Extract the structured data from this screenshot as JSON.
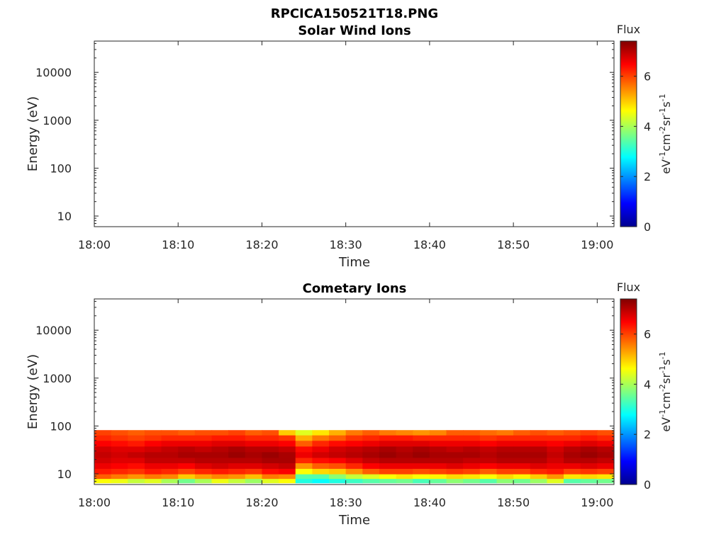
{
  "figure_title": "RPCICA150521T18.PNG",
  "colorbar": {
    "title": "Flux",
    "label_parts": [
      "eV",
      "-1",
      "cm",
      "-2",
      "sr",
      "-1",
      "s",
      "-1"
    ],
    "ticks": [
      0,
      2,
      4,
      6
    ],
    "range": [
      0,
      7.4
    ],
    "colormap": "jet"
  },
  "chart_data": [
    {
      "type": "heatmap",
      "title": "Solar Wind Ions",
      "xlabel": "Time",
      "ylabel": "Energy (eV)",
      "x_range": [
        "18:00",
        "19:02"
      ],
      "y_range": [
        6,
        45000
      ],
      "y_scale": "log",
      "x_ticks": [
        "18:00",
        "18:10",
        "18:20",
        "18:30",
        "18:40",
        "18:50",
        "19:00"
      ],
      "y_ticks": [
        "10",
        "100",
        "1000",
        "10000"
      ],
      "energy_bins": [
        6.5,
        8,
        10,
        13,
        17,
        22,
        29,
        38,
        50,
        65,
        82
      ],
      "columns": []
    },
    {
      "type": "heatmap",
      "title": "Cometary Ions",
      "xlabel": "Time",
      "ylabel": "Energy (eV)",
      "x_range": [
        "18:00",
        "19:02"
      ],
      "y_range": [
        6,
        45000
      ],
      "y_scale": "log",
      "x_ticks": [
        "18:00",
        "18:10",
        "18:20",
        "18:30",
        "18:40",
        "18:50",
        "19:00"
      ],
      "y_ticks": [
        "10",
        "100",
        "1000",
        "10000"
      ],
      "energy_bins": [
        6.5,
        8,
        10,
        13,
        17,
        22,
        29,
        38,
        50,
        65,
        82
      ],
      "columns": [
        {
          "t": "18:00",
          "flux": [
            4.6,
            5.8,
            6.3,
            6.6,
            6.8,
            6.9,
            6.8,
            6.5,
            6.2,
            6.0
          ]
        },
        {
          "t": "18:02",
          "flux": [
            4.5,
            5.6,
            6.2,
            6.5,
            6.7,
            6.8,
            6.7,
            6.4,
            6.1,
            5.9
          ]
        },
        {
          "t": "18:04",
          "flux": [
            4.2,
            5.4,
            6.1,
            6.4,
            6.7,
            6.9,
            6.7,
            6.3,
            6.0,
            5.8
          ]
        },
        {
          "t": "18:06",
          "flux": [
            4.4,
            5.6,
            6.3,
            6.6,
            6.9,
            7.0,
            6.8,
            6.5,
            6.1,
            5.9
          ]
        },
        {
          "t": "18:08",
          "flux": [
            4.0,
            5.5,
            6.2,
            6.6,
            6.9,
            7.0,
            6.9,
            6.6,
            6.2,
            5.9
          ]
        },
        {
          "t": "18:10",
          "flux": [
            3.6,
            5.0,
            6.0,
            6.5,
            6.9,
            7.1,
            7.0,
            6.6,
            6.2,
            5.8
          ]
        },
        {
          "t": "18:12",
          "flux": [
            4.0,
            5.3,
            6.2,
            6.7,
            7.0,
            7.1,
            6.9,
            6.6,
            6.2,
            5.9
          ]
        },
        {
          "t": "18:14",
          "flux": [
            4.5,
            5.5,
            6.3,
            6.8,
            7.0,
            7.1,
            7.0,
            6.7,
            6.3,
            5.9
          ]
        },
        {
          "t": "18:16",
          "flux": [
            4.2,
            5.4,
            6.2,
            6.7,
            7.0,
            7.2,
            7.1,
            6.7,
            6.3,
            6.0
          ]
        },
        {
          "t": "18:18",
          "flux": [
            3.9,
            5.1,
            6.1,
            6.7,
            7.0,
            7.1,
            7.0,
            6.6,
            6.2,
            5.8
          ]
        },
        {
          "t": "18:20",
          "flux": [
            4.4,
            5.6,
            6.4,
            6.8,
            7.1,
            7.2,
            7.0,
            6.6,
            6.2,
            5.9
          ]
        },
        {
          "t": "18:22",
          "flux": [
            4.6,
            5.5,
            6.5,
            6.9,
            7.1,
            7.1,
            6.9,
            6.5,
            6.1,
            5.0
          ]
        },
        {
          "t": "18:24",
          "flux": [
            3.0,
            3.4,
            4.6,
            5.4,
            6.2,
            6.6,
            6.4,
            5.8,
            5.2,
            4.4
          ]
        },
        {
          "t": "18:26",
          "flux": [
            2.8,
            3.4,
            4.9,
            5.8,
            6.4,
            6.8,
            6.6,
            6.2,
            5.6,
            4.8
          ]
        },
        {
          "t": "18:28",
          "flux": [
            3.0,
            3.8,
            5.0,
            5.9,
            6.5,
            6.9,
            6.8,
            6.4,
            5.8,
            5.2
          ]
        },
        {
          "t": "18:30",
          "flux": [
            3.2,
            4.2,
            5.4,
            6.2,
            6.7,
            7.0,
            6.9,
            6.5,
            6.1,
            5.6
          ]
        },
        {
          "t": "18:32",
          "flux": [
            3.4,
            4.4,
            5.8,
            6.5,
            6.9,
            7.1,
            7.0,
            6.6,
            6.2,
            5.8
          ]
        },
        {
          "t": "18:34",
          "flux": [
            3.5,
            4.6,
            6.0,
            6.6,
            7.0,
            7.2,
            7.1,
            6.7,
            6.3,
            5.6
          ]
        },
        {
          "t": "18:36",
          "flux": [
            3.6,
            4.8,
            6.0,
            6.6,
            7.0,
            7.1,
            7.0,
            6.7,
            6.3,
            5.5
          ]
        },
        {
          "t": "18:38",
          "flux": [
            3.3,
            4.6,
            5.9,
            6.6,
            7.0,
            7.2,
            7.1,
            6.7,
            6.2,
            5.4
          ]
        },
        {
          "t": "18:40",
          "flux": [
            3.5,
            4.7,
            6.0,
            6.6,
            7.0,
            7.1,
            7.0,
            6.6,
            6.2,
            5.5
          ]
        },
        {
          "t": "18:42",
          "flux": [
            3.8,
            4.9,
            6.1,
            6.7,
            7.0,
            7.1,
            6.9,
            6.6,
            6.2,
            5.8
          ]
        },
        {
          "t": "18:44",
          "flux": [
            3.6,
            4.8,
            6.0,
            6.6,
            6.9,
            7.1,
            7.0,
            6.6,
            6.2,
            5.8
          ]
        },
        {
          "t": "18:46",
          "flux": [
            3.4,
            4.6,
            5.8,
            6.5,
            6.9,
            7.0,
            6.9,
            6.5,
            6.1,
            5.7
          ]
        },
        {
          "t": "18:48",
          "flux": [
            3.8,
            4.9,
            6.0,
            6.6,
            7.0,
            7.1,
            7.0,
            6.6,
            6.2,
            5.6
          ]
        },
        {
          "t": "18:50",
          "flux": [
            3.6,
            4.7,
            6.0,
            6.6,
            7.0,
            7.1,
            7.0,
            6.6,
            6.2,
            5.8
          ]
        },
        {
          "t": "18:52",
          "flux": [
            3.9,
            5.0,
            6.2,
            6.7,
            7.0,
            7.1,
            7.0,
            6.6,
            6.2,
            5.9
          ]
        },
        {
          "t": "18:54",
          "flux": [
            4.4,
            5.4,
            6.3,
            6.6,
            6.8,
            6.9,
            6.8,
            6.5,
            6.2,
            5.8
          ]
        },
        {
          "t": "18:56",
          "flux": [
            3.4,
            4.8,
            6.0,
            6.6,
            7.0,
            7.1,
            7.0,
            6.6,
            6.2,
            5.9
          ]
        },
        {
          "t": "18:58",
          "flux": [
            3.5,
            4.9,
            6.1,
            6.7,
            7.0,
            7.2,
            7.1,
            6.7,
            6.3,
            6.0
          ]
        },
        {
          "t": "19:00",
          "flux": [
            3.6,
            4.8,
            6.0,
            6.6,
            6.9,
            7.1,
            7.0,
            6.6,
            6.2,
            5.9
          ]
        }
      ]
    }
  ]
}
